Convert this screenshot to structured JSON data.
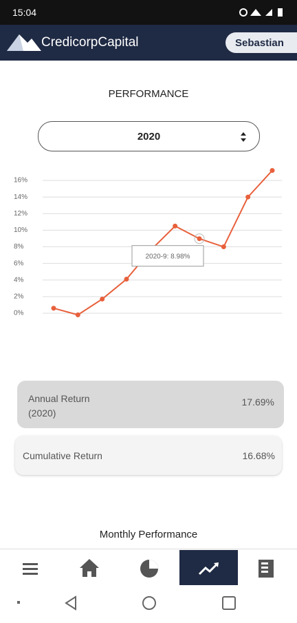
{
  "status_bar": {
    "time": "15:04"
  },
  "header": {
    "brand": "CredicorpCapital",
    "user": "Sebastian"
  },
  "page": {
    "title": "PERFORMANCE",
    "year_select": "2020"
  },
  "chart_data": {
    "type": "line",
    "categories": [
      null,
      null,
      null,
      null,
      null,
      null,
      null,
      null,
      null,
      null
    ],
    "series": [
      {
        "name": null,
        "color": "#e8603c",
        "values": [
          0.6,
          -0.2,
          1.7,
          4.1,
          7.6,
          10.5,
          8.98,
          8.0,
          14.0,
          17.2
        ],
        "value_labels": [
          null,
          null,
          null,
          null,
          null,
          null,
          "2020-9: 8.98%",
          null,
          null,
          null
        ]
      }
    ],
    "ylim": [
      -1,
      18
    ],
    "yticks": [
      {
        "value": 0,
        "label": "0%"
      },
      {
        "value": 2,
        "label": "2%"
      },
      {
        "value": 4,
        "label": "4%"
      },
      {
        "value": 6,
        "label": "6%"
      },
      {
        "value": 8,
        "label": "8%"
      },
      {
        "value": 10,
        "label": "10%"
      },
      {
        "value": 12,
        "label": "12%"
      },
      {
        "value": 14,
        "label": "14%"
      },
      {
        "value": 16,
        "label": "16%"
      }
    ],
    "grid": true
  },
  "cards": [
    {
      "label": "Annual Return",
      "sublabel": "(2020)",
      "value": "17.69%"
    },
    {
      "label": "Cumulative Return",
      "value": "16.68%"
    }
  ],
  "section": {
    "title": "Monthly Performance"
  }
}
